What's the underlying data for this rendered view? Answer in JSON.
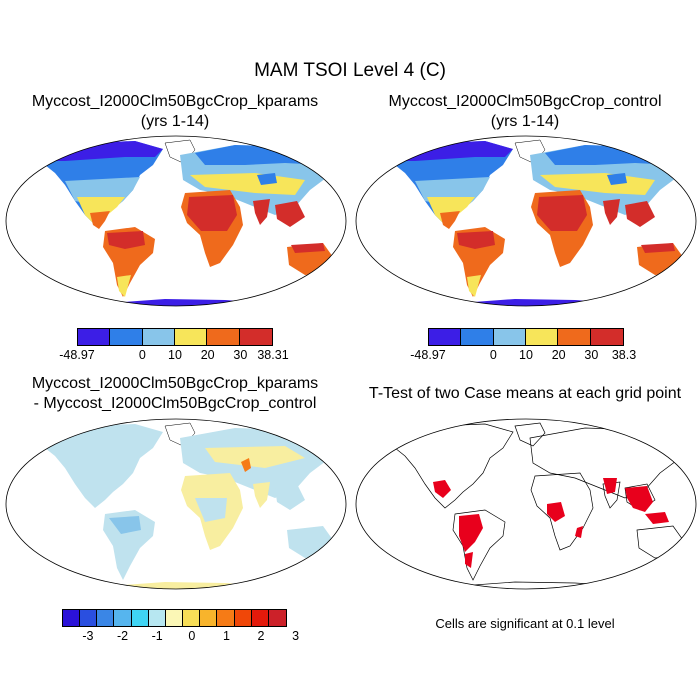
{
  "figure_title": "MAM TSOI Level 4 (C)",
  "panels": {
    "top_left": {
      "title_line1": "Myccost_I2000Clm50BgcCrop_kparams",
      "title_line2": "(yrs 1-14)",
      "colorbar": {
        "colors": [
          "#3c1ee6",
          "#2f7fe8",
          "#88c5ea",
          "#f7e55a",
          "#ef6a1c",
          "#d32d2a"
        ],
        "labels": [
          "-48.97",
          "0",
          "10",
          "20",
          "30",
          "38.31"
        ]
      }
    },
    "top_right": {
      "title_line1": "Myccost_I2000Clm50BgcCrop_control",
      "title_line2": "(yrs 1-14)",
      "colorbar": {
        "colors": [
          "#3c1ee6",
          "#2f7fe8",
          "#88c5ea",
          "#f7e55a",
          "#ef6a1c",
          "#d32d2a"
        ],
        "labels": [
          "-48.97",
          "0",
          "10",
          "20",
          "30",
          "38.3"
        ]
      }
    },
    "bottom_left": {
      "title_line1": "Myccost_I2000Clm50BgcCrop_kparams",
      "title_line2": "- Myccost_I2000Clm50BgcCrop_control",
      "colorbar": {
        "colors": [
          "#2b12d8",
          "#2a4fe0",
          "#3a86e6",
          "#56b5ee",
          "#3fd4f4",
          "#b7e7f1",
          "#fbf7b6",
          "#f7de57",
          "#f8b42c",
          "#f67b16",
          "#f04708",
          "#e31a0b",
          "#cc2129"
        ],
        "labels": [
          "-3",
          "-2",
          "-1",
          "0",
          "1",
          "2",
          "3"
        ]
      }
    },
    "bottom_right": {
      "title_line1": "T-Test of two Case means at each grid point",
      "note": "Cells are significant at 0.1 level",
      "significant_color": "#e8001c"
    }
  },
  "colors": {
    "cold": "#3c1ee6",
    "cool": "#2f7fe8",
    "mild": "#88c5ea",
    "warm": "#f7e55a",
    "hot": "#ef6a1c",
    "hottest": "#d32d2a",
    "diff_base": "#bfe2ee",
    "diff_yellow": "#f8eea0",
    "sig_red": "#e8001c"
  }
}
